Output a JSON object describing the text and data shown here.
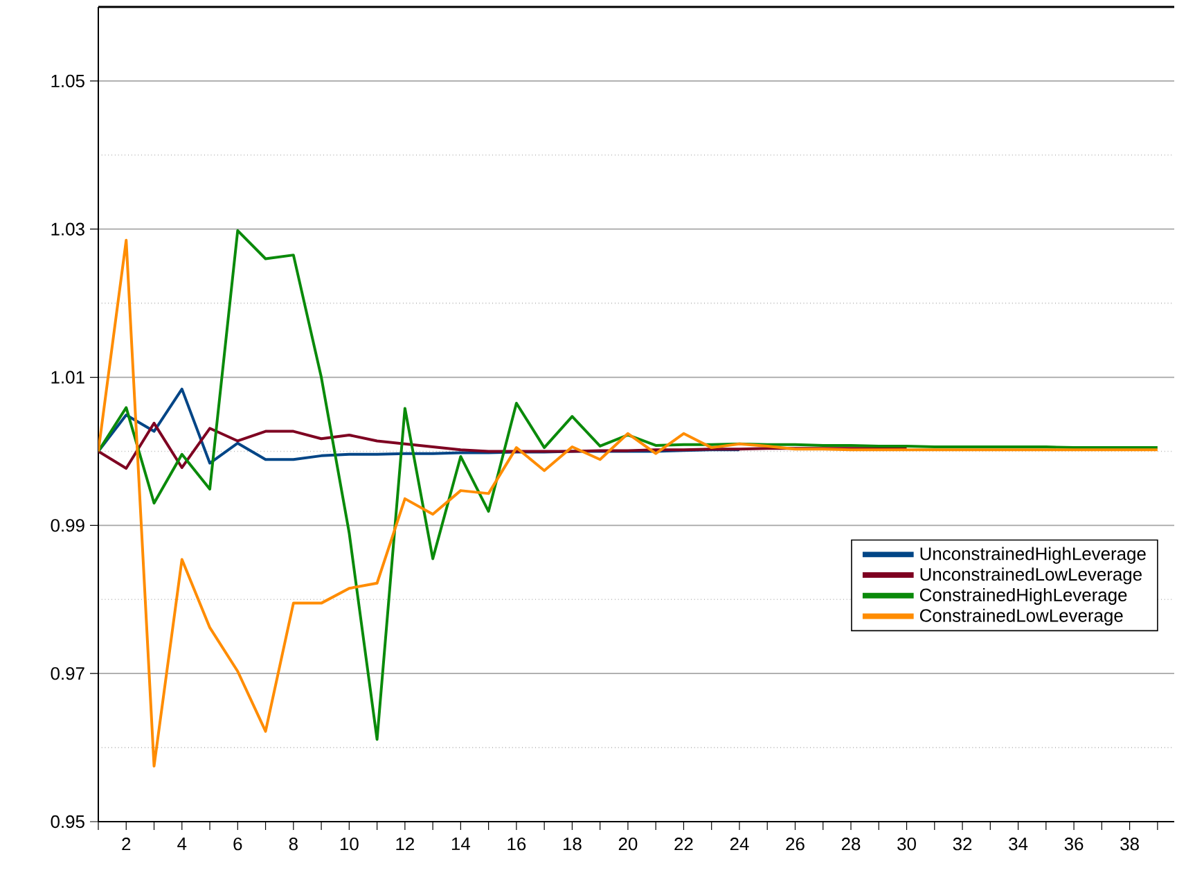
{
  "chart_data": {
    "type": "line",
    "x": [
      1,
      2,
      3,
      4,
      5,
      6,
      7,
      8,
      9,
      10,
      11,
      12,
      13,
      14,
      15,
      16,
      17,
      18,
      19,
      20,
      21,
      22,
      23,
      24,
      25,
      26,
      27,
      28,
      29,
      30,
      31,
      32,
      33,
      34,
      35,
      36,
      37,
      38,
      39
    ],
    "series": [
      {
        "name": "UnconstrainedHighLeverage",
        "color": "#004586",
        "values": [
          1.0,
          1.0049,
          1.0027,
          1.0084,
          0.9984,
          1.0011,
          0.9989,
          0.9989,
          0.9994,
          0.9996,
          0.9996,
          0.9997,
          0.9997,
          0.9998,
          0.9998,
          0.9999,
          0.9999,
          1.0,
          1.0,
          1.0,
          1.0,
          1.0001,
          1.0002,
          1.0002,
          null,
          null,
          null,
          null,
          null,
          null,
          null,
          null,
          null,
          null,
          null,
          null,
          null,
          null,
          null
        ]
      },
      {
        "name": "UnconstrainedLowLeverage",
        "color": "#7e0021",
        "values": [
          1.0,
          0.9977,
          1.0038,
          0.9978,
          1.0031,
          1.0014,
          1.0027,
          1.0027,
          1.0017,
          1.0022,
          1.0014,
          1.001,
          1.0006,
          1.0002,
          1.0,
          1.0,
          1.0,
          1.0,
          1.0001,
          1.0001,
          1.0002,
          1.0002,
          1.0003,
          1.0003,
          1.0004,
          1.0004,
          1.0004,
          1.0004,
          1.0004,
          1.0004,
          null,
          null,
          null,
          null,
          null,
          null,
          null,
          null,
          null
        ]
      },
      {
        "name": "ConstrainedHighLeverage",
        "color": "#0a8a0a",
        "values": [
          1.0,
          1.0059,
          0.993,
          0.9996,
          0.9949,
          1.0298,
          1.026,
          1.0265,
          1.01,
          0.989,
          0.9611,
          1.0058,
          0.9855,
          0.9993,
          0.9919,
          1.0065,
          1.0005,
          1.0047,
          1.0007,
          1.0022,
          1.0008,
          1.0009,
          1.0009,
          1.001,
          1.0009,
          1.0009,
          1.0008,
          1.0008,
          1.0007,
          1.0007,
          1.0006,
          1.0006,
          1.0006,
          1.0006,
          1.0006,
          1.0005,
          1.0005,
          1.0005,
          1.0005
        ]
      },
      {
        "name": "ConstrainedLowLeverage",
        "color": "#ff8c00",
        "values": [
          1.0,
          1.0285,
          0.9575,
          0.9854,
          0.9762,
          0.9703,
          0.9622,
          0.9795,
          0.9795,
          0.9815,
          0.9822,
          0.9936,
          0.9915,
          0.9947,
          0.9943,
          1.0005,
          0.9974,
          1.0006,
          0.9989,
          1.0024,
          0.9997,
          1.0024,
          1.0005,
          1.001,
          1.0007,
          1.0003,
          1.0003,
          1.0002,
          1.0002,
          1.0002,
          1.0002,
          1.0002,
          1.0002,
          1.0002,
          1.0002,
          1.0002,
          1.0002,
          1.0002,
          1.0002
        ]
      }
    ],
    "xlim": [
      1,
      39.6
    ],
    "xticks": [
      {
        "value": 1,
        "label": null
      },
      2,
      {
        "value": 3,
        "label": null
      },
      4,
      {
        "value": 5,
        "label": null
      },
      6,
      {
        "value": 7,
        "label": null
      },
      8,
      {
        "value": 9,
        "label": null
      },
      10,
      {
        "value": 11,
        "label": null
      },
      12,
      {
        "value": 13,
        "label": null
      },
      14,
      {
        "value": 15,
        "label": null
      },
      16,
      {
        "value": 17,
        "label": null
      },
      18,
      {
        "value": 19,
        "label": null
      },
      20,
      {
        "value": 21,
        "label": null
      },
      22,
      {
        "value": 23,
        "label": null
      },
      24,
      {
        "value": 25,
        "label": null
      },
      26,
      {
        "value": 27,
        "label": null
      },
      28,
      {
        "value": 29,
        "label": null
      },
      30,
      {
        "value": 31,
        "label": null
      },
      32,
      {
        "value": 33,
        "label": null
      },
      34,
      {
        "value": 35,
        "label": null
      },
      36,
      {
        "value": 37,
        "label": null
      },
      38,
      {
        "value": 39,
        "label": null
      }
    ],
    "ylim": [
      0.95,
      1.06
    ],
    "yticks": [
      0.95,
      {
        "value": 0.96,
        "label": null
      },
      0.97,
      {
        "value": 0.98,
        "label": null
      },
      0.99,
      {
        "value": 1.0,
        "label": null
      },
      1.01,
      {
        "value": 1.02,
        "label": null
      },
      1.03,
      {
        "value": 1.04,
        "label": null
      },
      1.05
    ],
    "grid": "y",
    "legend": "right",
    "marker": "none",
    "line_style": "solid"
  }
}
